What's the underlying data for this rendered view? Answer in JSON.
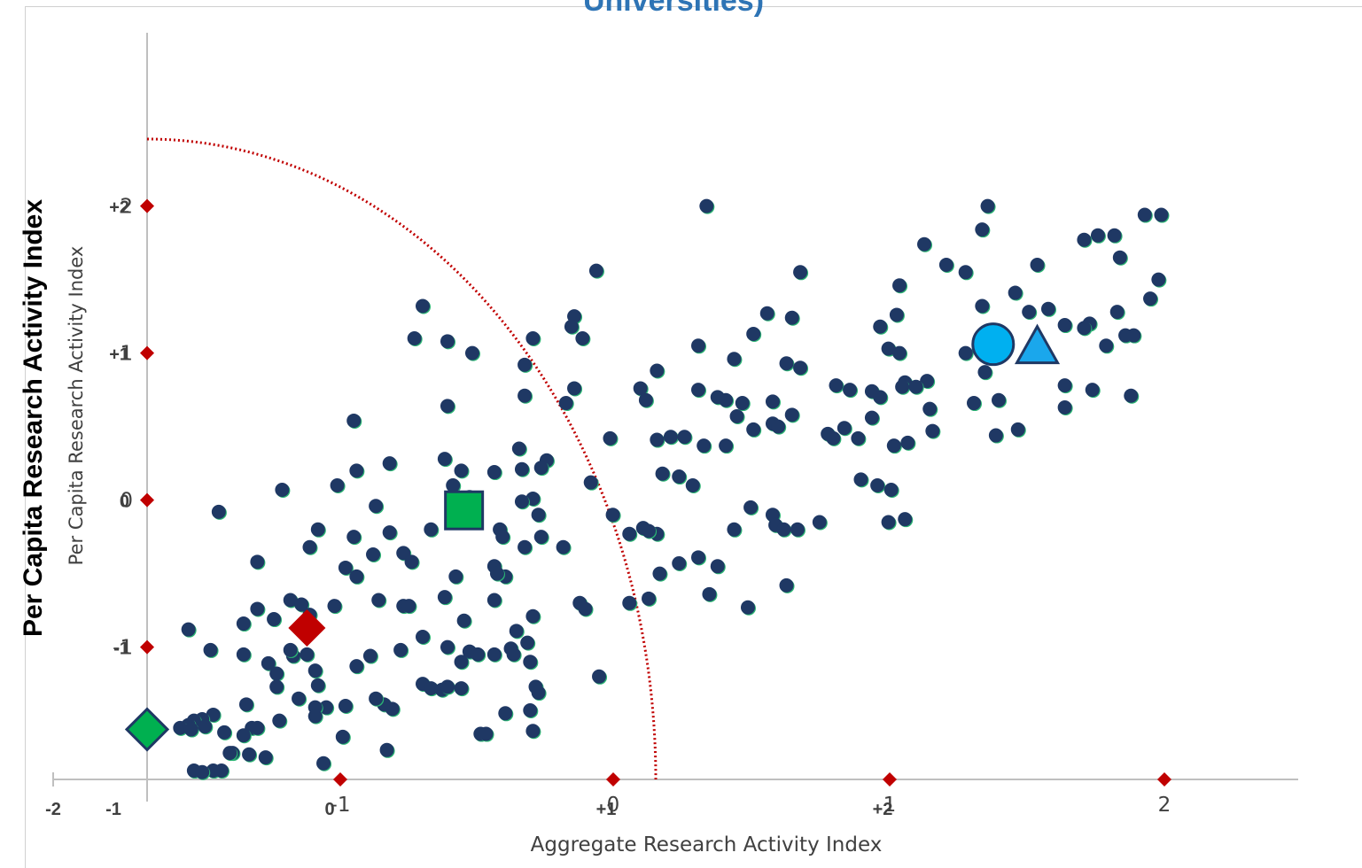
{
  "chart_data": {
    "type": "scatter",
    "title": "Universities)",
    "ylabel_primary": "Per Capita Research Activity Index",
    "ylabel": "Per Capita Research Activity Index",
    "xlabel": "Aggregate Research Activity Index",
    "xlim": [
      -1.75,
      2.4
    ],
    "ylim": [
      -1.9,
      2.9
    ],
    "x_ticks": [
      {
        "value": -1,
        "label": "-1"
      },
      {
        "value": 0,
        "label": "0"
      },
      {
        "value": 1,
        "label": "1"
      },
      {
        "value": 2,
        "label": "2"
      }
    ],
    "x_ticks_secondary": [
      {
        "value": -2.0,
        "label": "-2"
      },
      {
        "value": -1.0,
        "label": "-1"
      },
      {
        "value": 0.0,
        "label": "0"
      },
      {
        "value": 1.0,
        "label": "+1"
      },
      {
        "value": 2.0,
        "label": "+2"
      }
    ],
    "y_ticks": [
      {
        "value": 2,
        "label": "2"
      },
      {
        "value": 1,
        "label": "1"
      },
      {
        "value": 0,
        "label": "0"
      },
      {
        "value": -1,
        "label": "-1"
      }
    ],
    "y_ticks_secondary": [
      {
        "value": 2,
        "label": "+2"
      },
      {
        "value": 1,
        "label": "+1"
      },
      {
        "value": 0,
        "label": "0"
      },
      {
        "value": -1,
        "label": "-1"
      }
    ],
    "point_color": "#1f3864",
    "curve_color": "#c00000",
    "curve": {
      "center": [
        -1.75,
        -1.9
      ],
      "radius": 4.45
    },
    "highlights": [
      {
        "shape": "diamond",
        "x": -1.75,
        "y": -1.56,
        "color": "#00b050"
      },
      {
        "shape": "diamond",
        "x": -1.17,
        "y": -0.87,
        "color": "#c00000"
      },
      {
        "shape": "square",
        "x": -0.6,
        "y": -0.07,
        "color": "#00b050"
      },
      {
        "shape": "circle",
        "x": 1.32,
        "y": 1.06,
        "color": "#00b0f0"
      },
      {
        "shape": "triangle",
        "x": 1.48,
        "y": 1.03,
        "color": "#1aa7ec"
      }
    ],
    "points": [
      [
        0.28,
        2.0
      ],
      [
        1.3,
        2.0
      ],
      [
        1.87,
        1.94
      ],
      [
        1.93,
        1.94
      ],
      [
        1.28,
        1.84
      ],
      [
        1.7,
        1.8
      ],
      [
        1.65,
        1.77
      ],
      [
        1.76,
        1.8
      ],
      [
        1.07,
        1.74
      ],
      [
        1.22,
        1.55
      ],
      [
        1.15,
        1.6
      ],
      [
        1.48,
        1.6
      ],
      [
        1.78,
        1.65
      ],
      [
        -0.12,
        1.56
      ],
      [
        0.62,
        1.55
      ],
      [
        0.98,
        1.46
      ],
      [
        1.92,
        1.5
      ],
      [
        1.4,
        1.41
      ],
      [
        1.89,
        1.37
      ],
      [
        -0.75,
        1.32
      ],
      [
        -0.2,
        1.25
      ],
      [
        0.5,
        1.27
      ],
      [
        0.59,
        1.24
      ],
      [
        1.28,
        1.32
      ],
      [
        0.97,
        1.26
      ],
      [
        1.52,
        1.3
      ],
      [
        1.67,
        1.2
      ],
      [
        1.77,
        1.28
      ],
      [
        1.45,
        1.28
      ],
      [
        1.58,
        1.19
      ],
      [
        1.65,
        1.17
      ],
      [
        0.45,
        1.13
      ],
      [
        0.91,
        1.18
      ],
      [
        -0.35,
        1.1
      ],
      [
        -0.21,
        1.18
      ],
      [
        -0.78,
        1.1
      ],
      [
        -0.66,
        1.08
      ],
      [
        -0.57,
        1.0
      ],
      [
        0.25,
        1.05
      ],
      [
        0.94,
        1.03
      ],
      [
        1.8,
        1.12
      ],
      [
        1.73,
        1.05
      ],
      [
        0.98,
        1.0
      ],
      [
        1.22,
        1.0
      ],
      [
        1.83,
        1.12
      ],
      [
        -0.38,
        0.92
      ],
      [
        -0.17,
        1.1
      ],
      [
        0.1,
        0.88
      ],
      [
        0.38,
        0.96
      ],
      [
        0.57,
        0.93
      ],
      [
        0.75,
        0.78
      ],
      [
        1.08,
        0.81
      ],
      [
        1.0,
        0.8
      ],
      [
        0.62,
        0.9
      ],
      [
        -0.2,
        0.76
      ],
      [
        0.04,
        0.76
      ],
      [
        0.25,
        0.75
      ],
      [
        0.32,
        0.7
      ],
      [
        0.35,
        0.68
      ],
      [
        0.52,
        0.67
      ],
      [
        0.8,
        0.75
      ],
      [
        0.88,
        0.74
      ],
      [
        0.91,
        0.7
      ],
      [
        0.99,
        0.77
      ],
      [
        1.04,
        0.77
      ],
      [
        1.29,
        0.87
      ],
      [
        1.58,
        0.78
      ],
      [
        1.68,
        0.75
      ],
      [
        1.82,
        0.71
      ],
      [
        -0.38,
        0.71
      ],
      [
        -0.23,
        0.66
      ],
      [
        0.06,
        0.68
      ],
      [
        0.39,
        0.57
      ],
      [
        0.41,
        0.66
      ],
      [
        0.52,
        0.52
      ],
      [
        0.59,
        0.58
      ],
      [
        0.78,
        0.49
      ],
      [
        0.88,
        0.56
      ],
      [
        1.09,
        0.62
      ],
      [
        1.25,
        0.66
      ],
      [
        1.34,
        0.68
      ],
      [
        1.58,
        0.63
      ],
      [
        -0.66,
        0.64
      ],
      [
        -1.0,
        0.54
      ],
      [
        -0.07,
        0.42
      ],
      [
        0.1,
        0.41
      ],
      [
        0.15,
        0.43
      ],
      [
        0.2,
        0.43
      ],
      [
        0.27,
        0.37
      ],
      [
        0.35,
        0.37
      ],
      [
        0.45,
        0.48
      ],
      [
        0.54,
        0.5
      ],
      [
        0.72,
        0.45
      ],
      [
        0.74,
        0.42
      ],
      [
        0.83,
        0.42
      ],
      [
        0.96,
        0.37
      ],
      [
        1.01,
        0.39
      ],
      [
        1.1,
        0.47
      ],
      [
        1.33,
        0.44
      ],
      [
        1.41,
        0.48
      ],
      [
        -0.4,
        0.35
      ],
      [
        -0.3,
        0.27
      ],
      [
        -0.67,
        0.28
      ],
      [
        -0.39,
        0.21
      ],
      [
        -0.32,
        0.22
      ],
      [
        -0.61,
        0.2
      ],
      [
        -0.49,
        0.19
      ],
      [
        -0.99,
        0.2
      ],
      [
        -0.87,
        0.25
      ],
      [
        0.12,
        0.18
      ],
      [
        0.18,
        0.16
      ],
      [
        0.23,
        0.1
      ],
      [
        0.84,
        0.14
      ],
      [
        0.9,
        0.1
      ],
      [
        0.95,
        0.07
      ],
      [
        -1.26,
        0.07
      ],
      [
        -1.06,
        0.1
      ],
      [
        -0.64,
        0.1
      ],
      [
        -0.35,
        0.01
      ],
      [
        -0.14,
        0.12
      ],
      [
        -0.58,
        0.02
      ],
      [
        -0.39,
        -0.01
      ],
      [
        -1.49,
        -0.08
      ],
      [
        -0.92,
        -0.04
      ],
      [
        0.44,
        -0.05
      ],
      [
        0.52,
        -0.1
      ],
      [
        0.53,
        -0.17
      ],
      [
        0.56,
        -0.2
      ],
      [
        0.61,
        -0.2
      ],
      [
        0.69,
        -0.15
      ],
      [
        0.94,
        -0.15
      ],
      [
        1.0,
        -0.13
      ],
      [
        -0.33,
        -0.1
      ],
      [
        -0.06,
        -0.1
      ],
      [
        0.38,
        -0.2
      ],
      [
        -1.13,
        -0.2
      ],
      [
        -0.87,
        -0.22
      ],
      [
        -0.72,
        -0.2
      ],
      [
        -0.47,
        -0.2
      ],
      [
        -0.46,
        -0.25
      ],
      [
        -0.32,
        -0.25
      ],
      [
        -0.24,
        -0.32
      ],
      [
        -1.0,
        -0.25
      ],
      [
        -0.38,
        -0.32
      ],
      [
        0.0,
        -0.23
      ],
      [
        0.05,
        -0.19
      ],
      [
        0.1,
        -0.23
      ],
      [
        0.07,
        -0.21
      ],
      [
        -1.16,
        -0.32
      ],
      [
        -0.93,
        -0.37
      ],
      [
        -0.82,
        -0.36
      ],
      [
        -0.79,
        -0.42
      ],
      [
        -1.03,
        -0.46
      ],
      [
        -1.35,
        -0.42
      ],
      [
        -0.49,
        -0.45
      ],
      [
        0.18,
        -0.43
      ],
      [
        0.25,
        -0.39
      ],
      [
        -0.45,
        -0.52
      ],
      [
        -0.48,
        -0.5
      ],
      [
        -0.63,
        -0.52
      ],
      [
        -0.99,
        -0.52
      ],
      [
        0.11,
        -0.5
      ],
      [
        0.32,
        -0.45
      ],
      [
        0.57,
        -0.58
      ],
      [
        -1.23,
        -0.68
      ],
      [
        -0.91,
        -0.68
      ],
      [
        -0.82,
        -0.72
      ],
      [
        -0.67,
        -0.66
      ],
      [
        -0.6,
        -0.82
      ],
      [
        -0.49,
        -0.68
      ],
      [
        -0.35,
        -0.79
      ],
      [
        -0.18,
        -0.7
      ],
      [
        -0.16,
        -0.74
      ],
      [
        0.0,
        -0.7
      ],
      [
        0.07,
        -0.67
      ],
      [
        0.29,
        -0.64
      ],
      [
        0.43,
        -0.73
      ],
      [
        -1.35,
        -0.74
      ],
      [
        -1.19,
        -0.71
      ],
      [
        -1.16,
        -0.78
      ],
      [
        -1.07,
        -0.72
      ],
      [
        -1.29,
        -0.81
      ],
      [
        -0.8,
        -0.72
      ],
      [
        -0.75,
        -0.93
      ],
      [
        -1.4,
        -0.84
      ],
      [
        -1.6,
        -0.88
      ],
      [
        -0.58,
        -1.03
      ],
      [
        -0.66,
        -1.0
      ],
      [
        -0.41,
        -0.89
      ],
      [
        -0.37,
        -0.97
      ],
      [
        -0.43,
        -1.01
      ],
      [
        -0.61,
        -1.1
      ],
      [
        -0.55,
        -1.05
      ],
      [
        -0.49,
        -1.05
      ],
      [
        -0.83,
        -1.02
      ],
      [
        -0.94,
        -1.06
      ],
      [
        -1.22,
        -1.06
      ],
      [
        -1.17,
        -1.05
      ],
      [
        -1.14,
        -1.16
      ],
      [
        -1.23,
        -1.02
      ],
      [
        -1.31,
        -1.11
      ],
      [
        -1.4,
        -1.05
      ],
      [
        -1.52,
        -1.02
      ],
      [
        -0.42,
        -1.05
      ],
      [
        -0.36,
        -1.1
      ],
      [
        -0.99,
        -1.13
      ],
      [
        -1.13,
        -1.26
      ],
      [
        -1.28,
        -1.18
      ],
      [
        -1.28,
        -1.27
      ],
      [
        -1.2,
        -1.35
      ],
      [
        -0.75,
        -1.25
      ],
      [
        -0.72,
        -1.28
      ],
      [
        -0.68,
        -1.29
      ],
      [
        -0.66,
        -1.27
      ],
      [
        -0.61,
        -1.28
      ],
      [
        -0.34,
        -1.27
      ],
      [
        -0.33,
        -1.31
      ],
      [
        -0.11,
        -1.2
      ],
      [
        -1.1,
        -1.41
      ],
      [
        -1.14,
        -1.41
      ],
      [
        -1.14,
        -1.47
      ],
      [
        -1.03,
        -1.4
      ],
      [
        -0.89,
        -1.39
      ],
      [
        -0.86,
        -1.42
      ],
      [
        -0.92,
        -1.35
      ],
      [
        -1.39,
        -1.39
      ],
      [
        -1.27,
        -1.5
      ],
      [
        -1.37,
        -1.55
      ],
      [
        -1.51,
        -1.46
      ],
      [
        -1.55,
        -1.49
      ],
      [
        -1.58,
        -1.5
      ],
      [
        -1.6,
        -1.53
      ],
      [
        -1.63,
        -1.55
      ],
      [
        -1.59,
        -1.56
      ],
      [
        -1.47,
        -1.58
      ],
      [
        -1.4,
        -1.6
      ],
      [
        -1.35,
        -1.55
      ],
      [
        -0.45,
        -1.45
      ],
      [
        -0.36,
        -1.43
      ],
      [
        -0.54,
        -1.59
      ],
      [
        -0.52,
        -1.59
      ],
      [
        -0.35,
        -1.57
      ],
      [
        -1.04,
        -1.61
      ],
      [
        -0.88,
        -1.7
      ],
      [
        -1.44,
        -1.72
      ],
      [
        -1.38,
        -1.73
      ],
      [
        -1.45,
        -1.72
      ],
      [
        -1.32,
        -1.75
      ],
      [
        -1.11,
        -1.79
      ],
      [
        -1.58,
        -1.84
      ],
      [
        -1.51,
        -1.84
      ],
      [
        -1.55,
        -1.85
      ],
      [
        -1.48,
        -1.84
      ],
      [
        -1.54,
        -1.54
      ]
    ]
  }
}
